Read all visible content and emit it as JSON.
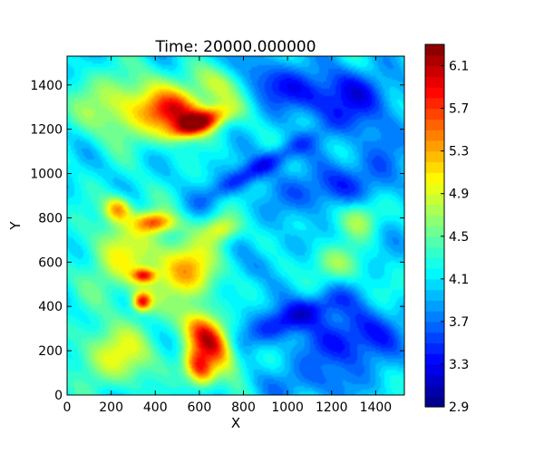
{
  "chart_data": {
    "type": "heatmap",
    "title": "Time: 20000.000000",
    "xlabel": "X",
    "ylabel": "Y",
    "xlim": [
      0,
      1530
    ],
    "ylim": [
      0,
      1530
    ],
    "xticks": [
      0,
      200,
      400,
      600,
      800,
      1000,
      1200,
      1400
    ],
    "yticks": [
      0,
      200,
      400,
      600,
      800,
      1000,
      1200,
      1400
    ],
    "colorbar": {
      "colormap": "jet",
      "range": [
        2.9,
        6.3
      ],
      "ticks": [
        2.9,
        3.3,
        3.7,
        4.1,
        4.5,
        4.9,
        5.3,
        5.7,
        6.1
      ],
      "levels": 34
    },
    "base_level": 4.1,
    "features": [
      {
        "x": 650,
        "y": 250,
        "value": 6.1,
        "rx": 70,
        "ry": 150,
        "angle": 40
      },
      {
        "x": 600,
        "y": 120,
        "value": 5.8,
        "rx": 60,
        "ry": 90,
        "angle": 30
      },
      {
        "x": 600,
        "y": 1230,
        "value": 5.9,
        "rx": 130,
        "ry": 50,
        "angle": 20
      },
      {
        "x": 500,
        "y": 1280,
        "value": 5.4,
        "rx": 130,
        "ry": 90,
        "angle": 0
      },
      {
        "x": 300,
        "y": 1300,
        "value": 5.0,
        "rx": 250,
        "ry": 150,
        "angle": 0
      },
      {
        "x": 700,
        "y": 1420,
        "value": 4.8,
        "rx": 120,
        "ry": 100,
        "angle": 0
      },
      {
        "x": 400,
        "y": 780,
        "value": 5.4,
        "rx": 90,
        "ry": 45,
        "angle": 0
      },
      {
        "x": 230,
        "y": 840,
        "value": 5.2,
        "rx": 60,
        "ry": 55,
        "angle": 0
      },
      {
        "x": 340,
        "y": 420,
        "value": 5.6,
        "rx": 40,
        "ry": 40,
        "angle": 0
      },
      {
        "x": 350,
        "y": 540,
        "value": 5.3,
        "rx": 50,
        "ry": 30,
        "angle": 0
      },
      {
        "x": 560,
        "y": 560,
        "value": 5.2,
        "rx": 130,
        "ry": 130,
        "angle": 0
      },
      {
        "x": 280,
        "y": 620,
        "value": 4.9,
        "rx": 200,
        "ry": 200,
        "angle": 0
      },
      {
        "x": 230,
        "y": 180,
        "value": 4.9,
        "rx": 200,
        "ry": 140,
        "angle": 0
      },
      {
        "x": 700,
        "y": 750,
        "value": 5.0,
        "rx": 80,
        "ry": 60,
        "angle": 0
      },
      {
        "x": 1330,
        "y": 800,
        "value": 4.9,
        "rx": 100,
        "ry": 90,
        "angle": 0
      },
      {
        "x": 1200,
        "y": 600,
        "value": 4.6,
        "rx": 120,
        "ry": 80,
        "angle": 0
      },
      {
        "x": 1380,
        "y": 500,
        "value": 4.3,
        "rx": 200,
        "ry": 100,
        "angle": 0
      },
      {
        "x": 1000,
        "y": 1380,
        "value": 3.4,
        "rx": 350,
        "ry": 90,
        "angle": -25
      },
      {
        "x": 1300,
        "y": 1380,
        "value": 3.5,
        "rx": 200,
        "ry": 100,
        "angle": -15
      },
      {
        "x": 880,
        "y": 1030,
        "value": 3.3,
        "rx": 280,
        "ry": 50,
        "angle": 30
      },
      {
        "x": 1150,
        "y": 930,
        "value": 3.5,
        "rx": 200,
        "ry": 100,
        "angle": 15
      },
      {
        "x": 1050,
        "y": 360,
        "value": 3.2,
        "rx": 250,
        "ry": 70,
        "angle": 25
      },
      {
        "x": 1300,
        "y": 250,
        "value": 3.3,
        "rx": 220,
        "ry": 130,
        "angle": 20
      },
      {
        "x": 1400,
        "y": 1000,
        "value": 3.8,
        "rx": 150,
        "ry": 300,
        "angle": 0
      },
      {
        "x": 900,
        "y": 600,
        "value": 3.9,
        "rx": 200,
        "ry": 60,
        "angle": 35
      },
      {
        "x": 1100,
        "y": 50,
        "value": 3.8,
        "rx": 250,
        "ry": 80,
        "angle": 0
      }
    ]
  }
}
